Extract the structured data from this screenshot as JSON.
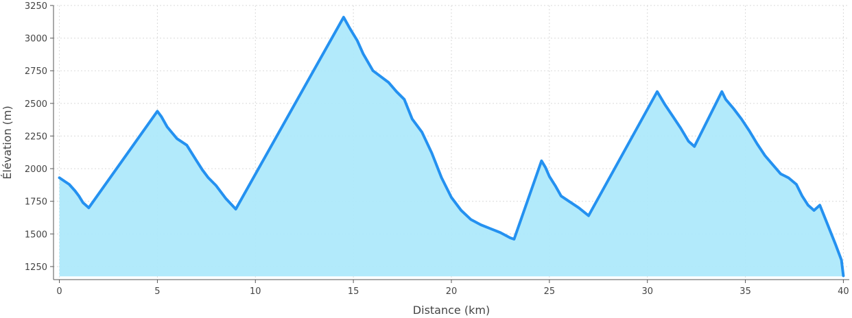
{
  "chart_data": {
    "type": "area",
    "xlabel": "Distance (km)",
    "ylabel": "Élévation (m)",
    "xlim": [
      -0.3,
      40.3
    ],
    "ylim": [
      1150,
      3250
    ],
    "xticks": [
      0,
      5,
      10,
      15,
      20,
      25,
      30,
      35,
      40
    ],
    "yticks": [
      1250,
      1500,
      1750,
      2000,
      2250,
      2500,
      2750,
      3000,
      3250
    ],
    "fill_base": 1175,
    "grid": true,
    "colors": {
      "line": "#2491f0",
      "fill": "#aee9fb"
    },
    "series": [
      {
        "x": [
          0,
          0.3,
          0.5,
          0.8,
          1.0,
          1.2,
          1.5,
          5.0,
          5.2,
          5.5,
          6.0,
          6.5,
          7.0,
          7.3,
          7.6,
          8.0,
          8.5,
          9.0,
          14.5,
          14.8,
          15.2,
          15.5,
          16.0,
          16.8,
          17.2,
          17.6,
          18.0,
          18.5,
          19.0,
          19.5,
          20.0,
          20.5,
          21.0,
          21.5,
          22.0,
          22.5,
          23.0,
          23.2,
          24.6,
          24.8,
          25.0,
          25.3,
          25.6,
          26.0,
          26.5,
          27.0,
          30.5,
          30.9,
          31.3,
          31.7,
          32.1,
          32.4,
          33.8,
          34.0,
          34.4,
          34.8,
          35.2,
          35.6,
          36.0,
          36.4,
          36.8,
          37.2,
          37.6,
          37.9,
          38.2,
          38.5,
          38.8,
          39.2,
          39.6,
          39.9,
          40.0
        ],
        "y": [
          1930,
          1900,
          1880,
          1830,
          1790,
          1740,
          1700,
          2440,
          2400,
          2320,
          2230,
          2180,
          2060,
          1990,
          1930,
          1870,
          1770,
          1690,
          3160,
          3080,
          2980,
          2880,
          2750,
          2660,
          2590,
          2530,
          2380,
          2280,
          2120,
          1930,
          1780,
          1680,
          1610,
          1570,
          1540,
          1510,
          1470,
          1460,
          2060,
          2010,
          1940,
          1870,
          1790,
          1750,
          1700,
          1640,
          2590,
          2490,
          2400,
          2310,
          2210,
          2170,
          2590,
          2530,
          2460,
          2380,
          2290,
          2190,
          2100,
          2030,
          1960,
          1930,
          1880,
          1790,
          1720,
          1680,
          1720,
          1570,
          1420,
          1300,
          1180
        ]
      }
    ]
  }
}
